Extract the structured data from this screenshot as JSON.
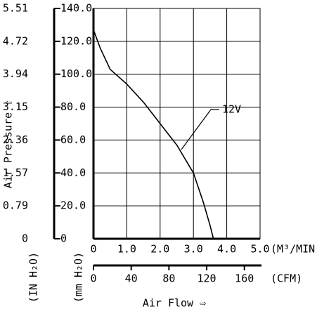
{
  "chart_data": {
    "type": "line",
    "ylabel": "Air Pressure ⇧",
    "xlabel": "Air Flow ⇨",
    "x_unit": "(M³/MIN)",
    "x2_unit": "(CFM)",
    "y_unit": "(mm H₂O)",
    "y2_unit": "(IN H₂O)",
    "xlim": [
      0,
      5
    ],
    "xticks": [
      0,
      {
        "value": 1,
        "label": "1.0"
      },
      {
        "value": 2,
        "label": "2.0"
      },
      {
        "value": 3,
        "label": "3.0"
      },
      {
        "value": 4,
        "label": "4.0"
      },
      {
        "value": 5,
        "label": "5.0"
      }
    ],
    "x2lim": [
      0,
      176.6
    ],
    "x2ticks": [
      0,
      40,
      80,
      120,
      160
    ],
    "ylim": [
      0,
      140
    ],
    "yticks": [
      0,
      {
        "value": 20,
        "label": "20.0"
      },
      {
        "value": 40,
        "label": "40.0"
      },
      {
        "value": 60,
        "label": "60.0"
      },
      {
        "value": 80,
        "label": "80.0"
      },
      {
        "value": 100,
        "label": "100.0"
      },
      {
        "value": 120,
        "label": "120.0"
      },
      {
        "value": 140,
        "label": "140.0"
      }
    ],
    "y2lim": [
      0,
      5.51
    ],
    "y2ticks": [
      0,
      0.79,
      1.57,
      2.36,
      3.15,
      3.94,
      4.72,
      5.51
    ],
    "grid": true,
    "series": [
      {
        "name": "12V",
        "color": "#000000",
        "x": [
          0,
          0.2,
          0.5,
          1.0,
          1.5,
          2.0,
          2.5,
          3.0,
          3.3,
          3.5,
          3.6
        ],
        "values": [
          127,
          116,
          103,
          94,
          83,
          70,
          57,
          40,
          22,
          8,
          0
        ]
      }
    ]
  }
}
